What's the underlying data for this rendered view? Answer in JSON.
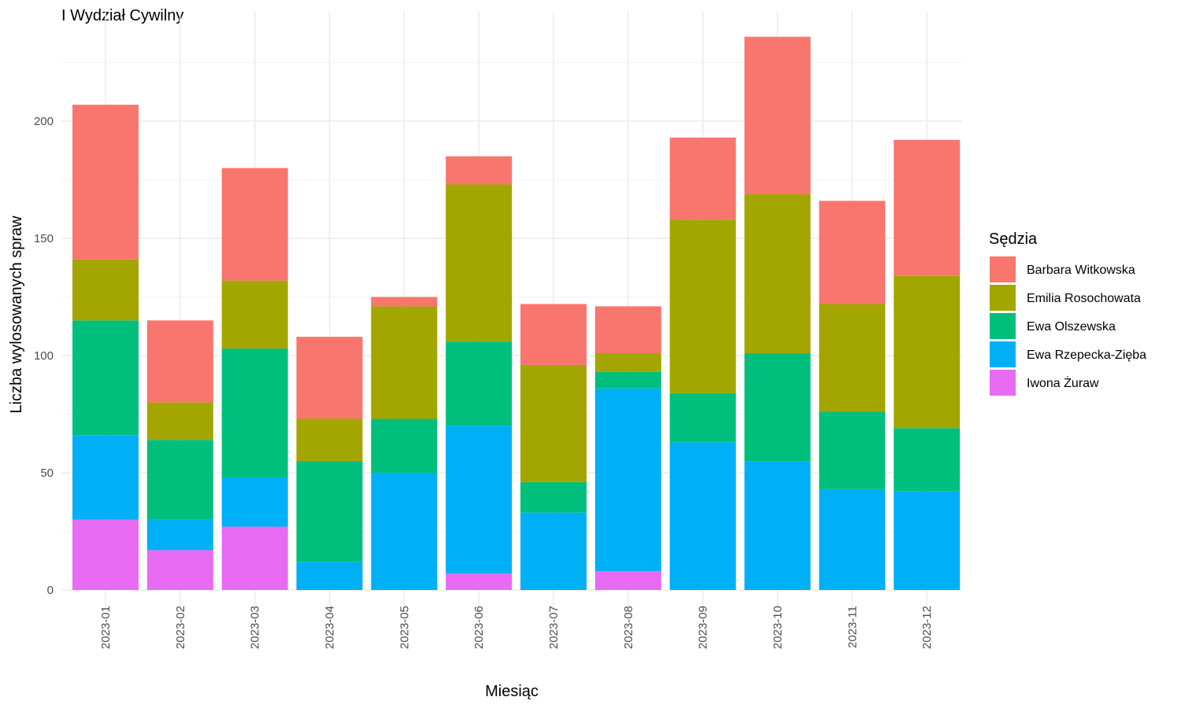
{
  "chart_data": {
    "type": "bar",
    "stacked": true,
    "title": "I Wydział Cywilny",
    "xlabel": "Miesiąc",
    "ylabel": "Liczba wylosowanych spraw",
    "ylim": [
      0,
      240
    ],
    "yticks": [
      0,
      50,
      100,
      150,
      200
    ],
    "grid": true,
    "legend": {
      "title": "Sędzia",
      "position": "right"
    },
    "categories": [
      "2023-01",
      "2023-02",
      "2023-03",
      "2023-04",
      "2023-05",
      "2023-06",
      "2023-07",
      "2023-08",
      "2023-09",
      "2023-10",
      "2023-11",
      "2023-12"
    ],
    "series": [
      {
        "name": "Iwona Żuraw",
        "color": "#E76BF3",
        "values": [
          30,
          17,
          27,
          0,
          0,
          7,
          0,
          8,
          0,
          0,
          0,
          0
        ]
      },
      {
        "name": "Ewa Rzepecka-Zięba",
        "color": "#00B0F6",
        "values": [
          36,
          13,
          21,
          12,
          50,
          63,
          33,
          78,
          63,
          55,
          43,
          42
        ]
      },
      {
        "name": "Ewa Olszewska",
        "color": "#00BF7D",
        "values": [
          49,
          34,
          55,
          43,
          23,
          36,
          13,
          7,
          21,
          46,
          33,
          27
        ]
      },
      {
        "name": "Emilia Rosochowata",
        "color": "#A3A500",
        "values": [
          26,
          16,
          29,
          18,
          48,
          67,
          50,
          8,
          74,
          68,
          46,
          65
        ]
      },
      {
        "name": "Barbara Witkowska",
        "color": "#F8766D",
        "values": [
          66,
          35,
          48,
          35,
          4,
          12,
          26,
          20,
          35,
          67,
          44,
          58
        ]
      }
    ]
  }
}
